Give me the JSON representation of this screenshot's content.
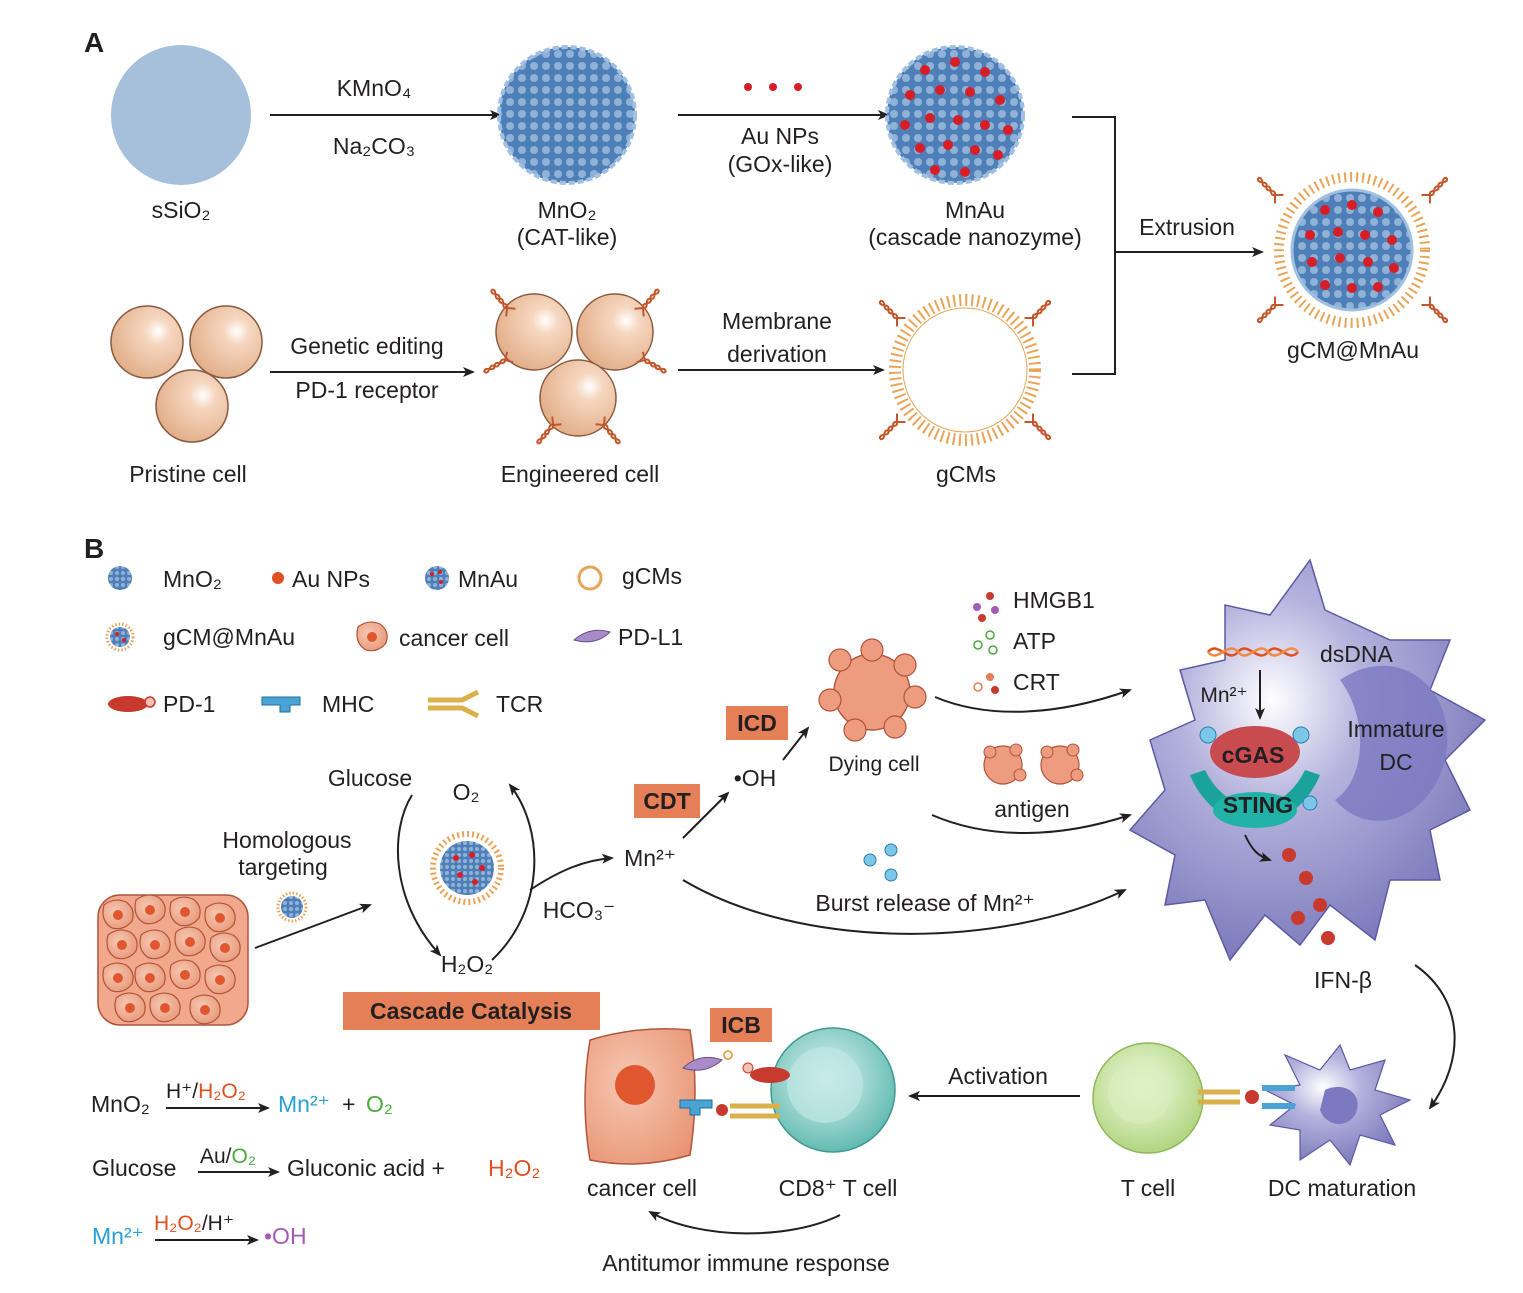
{
  "panel_a": {
    "label": "A",
    "ssio2": "sSiO₂",
    "reagent_top": "KMnO₄",
    "reagent_bottom": "Na₂CO₃",
    "mno2": "MnO₂",
    "mno2_sub": "(CAT-like)",
    "au_label": "Au NPs",
    "au_sub": "(GOx-like)",
    "mnau": "MnAu",
    "mnau_sub": "(cascade nanozyme)",
    "extrusion": "Extrusion",
    "product": "gCM@MnAu",
    "pristine": "Pristine cell",
    "editing": "Genetic editing",
    "receptor": "PD-1 receptor",
    "engineered": "Engineered cell",
    "membrane1": "Membrane",
    "membrane2": "derivation",
    "gcms": "gCMs"
  },
  "panel_b": {
    "label": "B",
    "legend": {
      "mno2": "MnO₂",
      "au": "Au NPs",
      "mnau": "MnAu",
      "gcms": "gCMs",
      "gcm_mnau": "gCM@MnAu",
      "cancer": "cancer cell",
      "pdl1": "PD-L1",
      "pd1": "PD-1",
      "mhc": "MHC",
      "tcr": "TCR"
    },
    "glucose": "Glucose",
    "o2": "O₂",
    "homologous1": "Homologous",
    "homologous2": "targeting",
    "h2o2": "H₂O₂",
    "hco3": "HCO₃⁻",
    "cascade": "Cascade Catalysis",
    "cdt": "CDT",
    "mn2": "Mn²⁺",
    "oh": "•OH",
    "icd": "ICD",
    "dying": "Dying cell",
    "hmgb1": "HMGB1",
    "atp": "ATP",
    "crt": "CRT",
    "antigen": "antigen",
    "burst": "Burst release of Mn²⁺",
    "dsdna": "dsDNA",
    "dc_mn": "Mn²⁺",
    "cgas": "cGAS",
    "sting": "STING",
    "immature1": "Immature",
    "immature2": "DC",
    "ifn": "IFN-β",
    "icb": "ICB",
    "activation": "Activation",
    "tcell": "T cell",
    "dcmat": "DC maturation",
    "cancer_cell": "cancer cell",
    "cd8": "CD8⁺ T cell",
    "antitumor": "Antitumor immune response",
    "eq1_left": "MnO₂",
    "eq1_top_a": "H⁺/",
    "eq1_top_b": "H₂O₂",
    "eq1_mn": "Mn²⁺",
    "eq1_plus": "+",
    "eq1_o2": "O₂",
    "eq2_left": "Glucose",
    "eq2_top_a": "Au/",
    "eq2_top_b": "O₂",
    "eq2_right": "Gluconic acid +",
    "eq2_h2o2": "H₂O₂",
    "eq3_left": "Mn²⁺",
    "eq3_top_a": "H₂O₂",
    "eq3_top_b": "/H⁺",
    "eq3_right": "•OH"
  },
  "colors": {
    "sio2": "#a6c0dc",
    "mno2": "#8fb2d6",
    "au": "#d71e26",
    "cell": "#efc4a3",
    "membrane": "#e8a55a",
    "cancer": "#ee9c7f",
    "box": "#e47f57",
    "dc": "#8f8fc8",
    "sting": "#1aa39a",
    "cgas": "#c74b4f",
    "tcell": "#c8e39a",
    "cd8": "#7cc9c0",
    "eq_blue": "#2a9fd6",
    "eq_red": "#e0501f",
    "eq_green": "#4aaa3c",
    "eq_purple": "#a25cb5"
  }
}
